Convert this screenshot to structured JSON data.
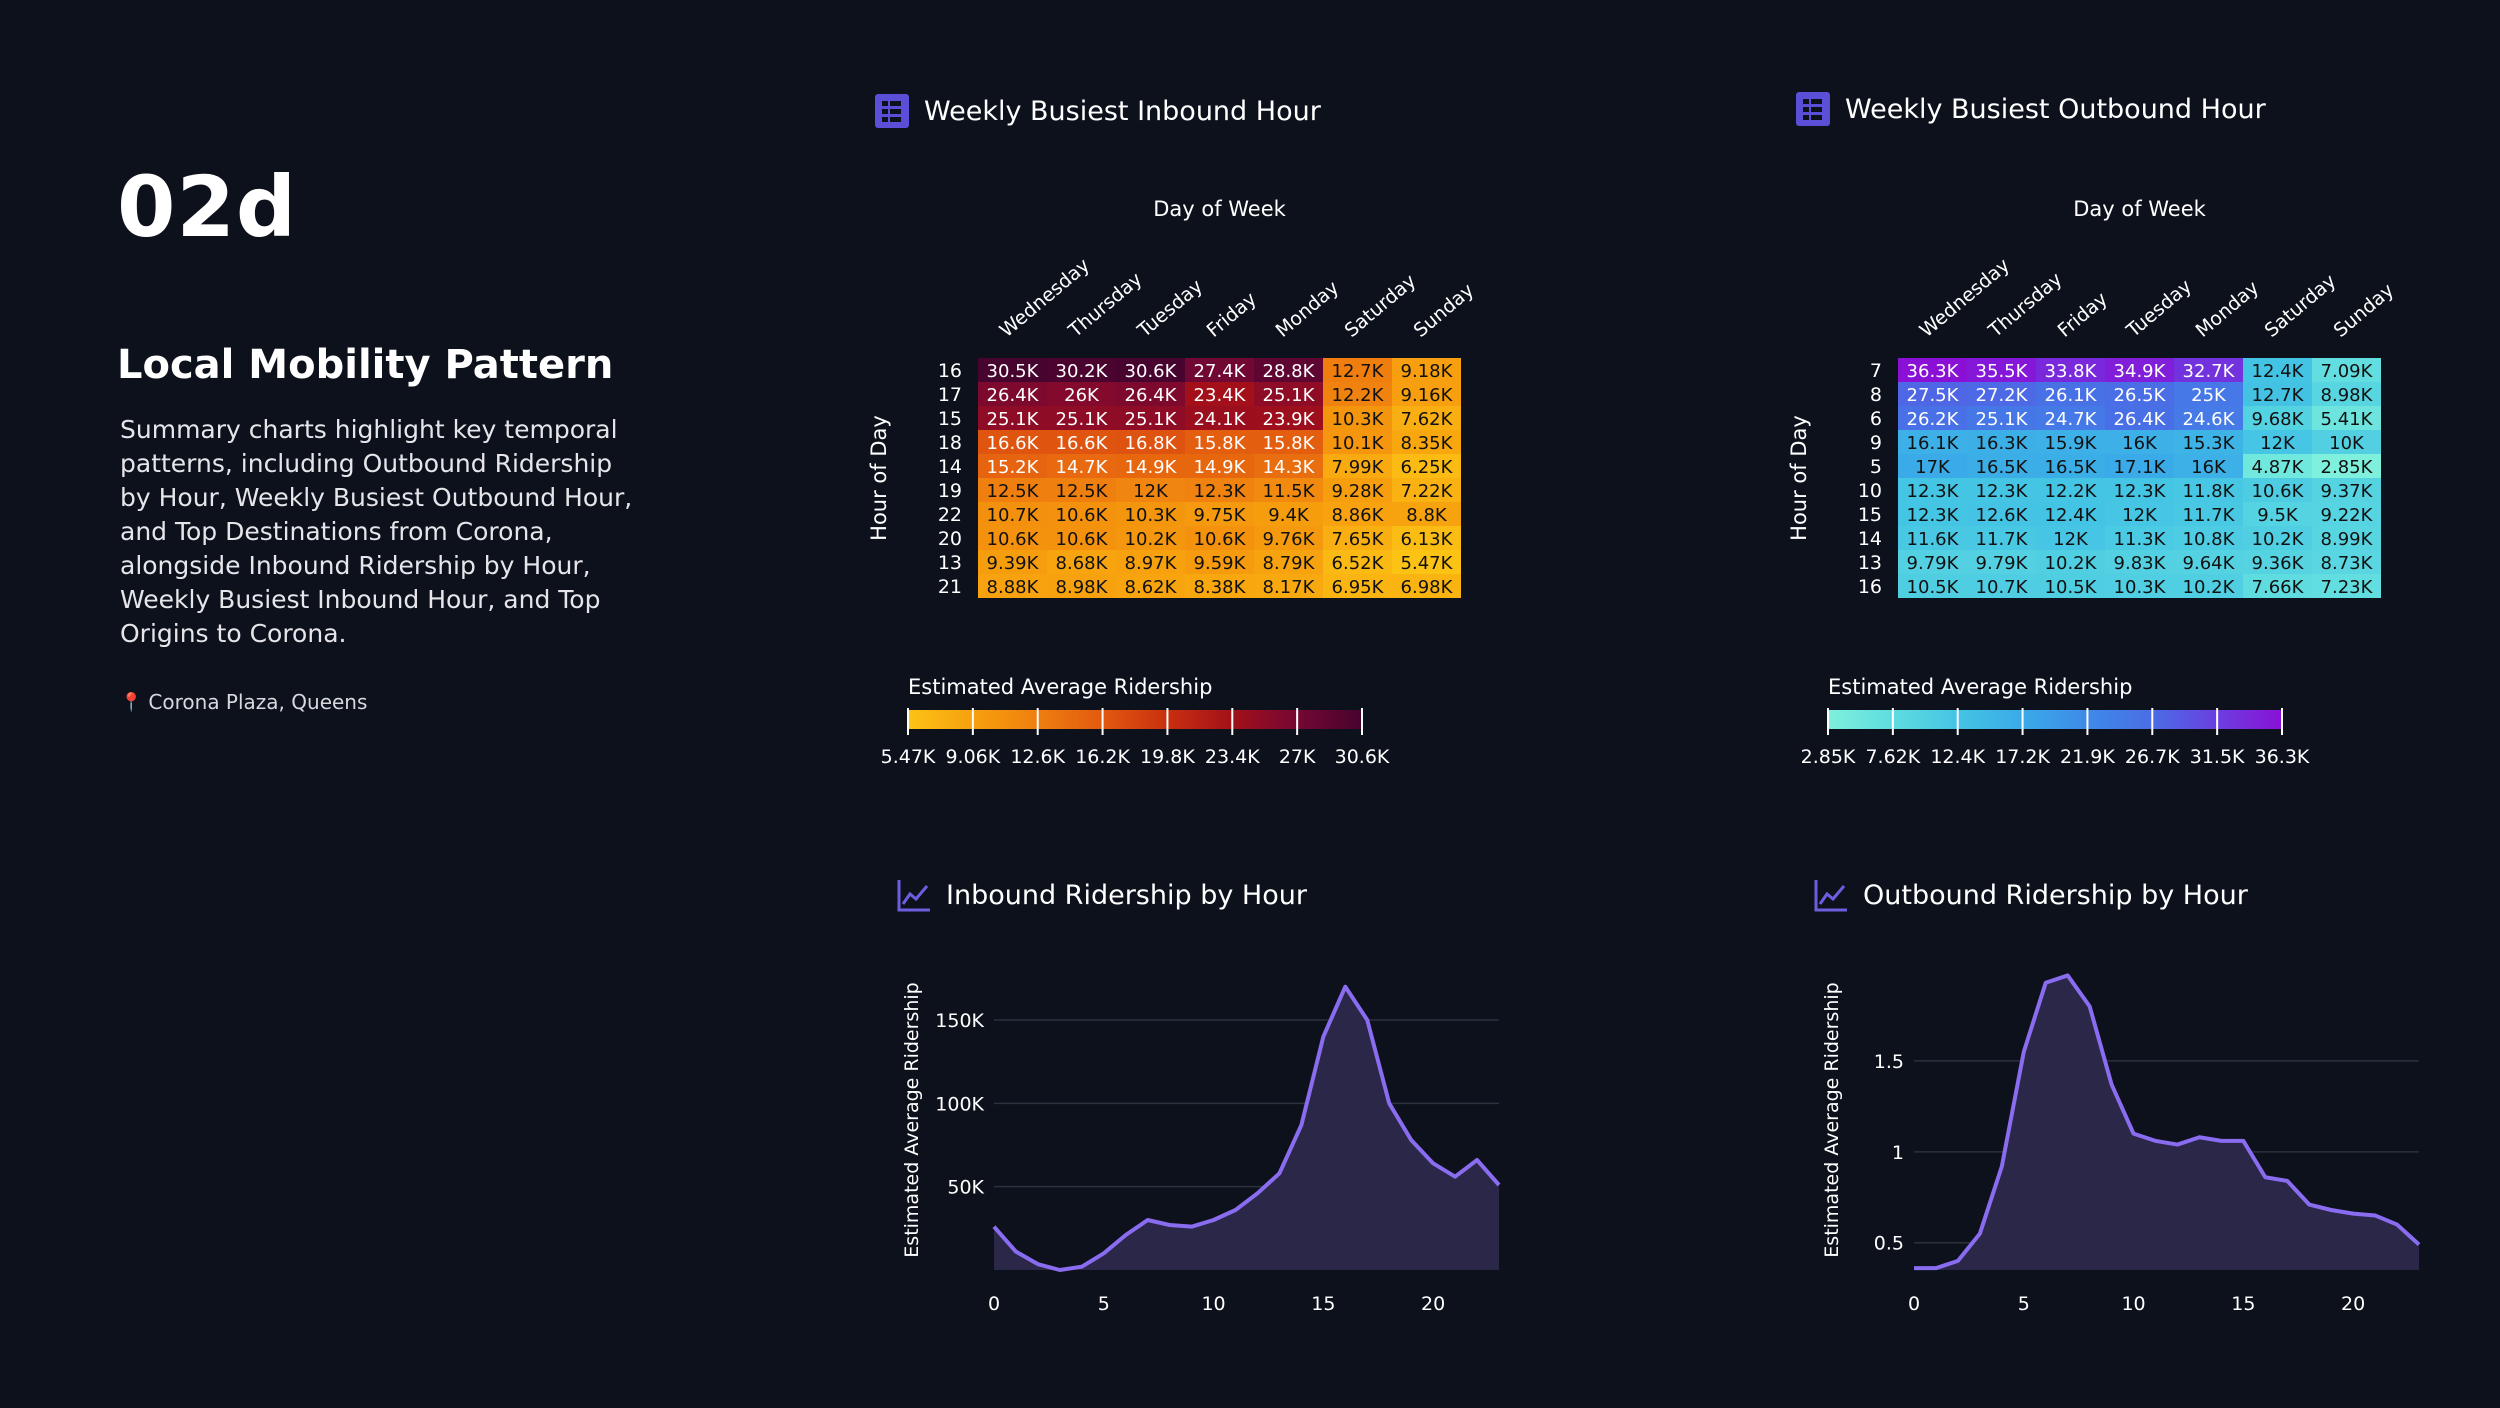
{
  "slide": {
    "code": "02d",
    "title": "Local Mobility Pattern",
    "description": "Summary charts highlight key temporal patterns, including Outbound Ridership by Hour, Weekly Busiest Outbound Hour, and Top Destinations from Corona, alongside Inbound Ridership by Hour, Weekly Busiest Inbound Hour, and Top Origins to Corona.",
    "location": "Corona Plaza, Queens",
    "location_icon": "map-pin-icon"
  },
  "panels": {
    "inbound_heatmap_title": "Weekly Busiest Inbound Hour",
    "outbound_heatmap_title": "Weekly Busiest Outbound Hour",
    "inbound_line_title": "Inbound Ridership by Hour",
    "outbound_line_title": "Outbound Ridership by Hour",
    "heatmap_icon": "grid-table-icon",
    "line_icon": "line-chart-icon",
    "accent_color": "#6b5fe0"
  },
  "chart_data": [
    {
      "id": "inbound-heatmap",
      "type": "heatmap",
      "xlabel": "Day of Week",
      "ylabel": "Hour of Day",
      "x": [
        "Wednesday",
        "Thursday",
        "Tuesday",
        "Friday",
        "Monday",
        "Saturday",
        "Sunday"
      ],
      "y": [
        "16",
        "17",
        "15",
        "18",
        "14",
        "19",
        "22",
        "20",
        "13",
        "21"
      ],
      "values": [
        [
          "30.5K",
          "30.2K",
          "30.6K",
          "27.4K",
          "28.8K",
          "12.7K",
          "9.18K"
        ],
        [
          "26.4K",
          "26K",
          "26.4K",
          "23.4K",
          "25.1K",
          "12.2K",
          "9.16K"
        ],
        [
          "25.1K",
          "25.1K",
          "25.1K",
          "24.1K",
          "23.9K",
          "10.3K",
          "7.62K"
        ],
        [
          "16.6K",
          "16.6K",
          "16.8K",
          "15.8K",
          "15.8K",
          "10.1K",
          "8.35K"
        ],
        [
          "15.2K",
          "14.7K",
          "14.9K",
          "14.9K",
          "14.3K",
          "7.99K",
          "6.25K"
        ],
        [
          "12.5K",
          "12.5K",
          "12K",
          "12.3K",
          "11.5K",
          "9.28K",
          "7.22K"
        ],
        [
          "10.7K",
          "10.6K",
          "10.3K",
          "9.75K",
          "9.4K",
          "8.86K",
          "8.8K"
        ],
        [
          "10.6K",
          "10.6K",
          "10.2K",
          "10.6K",
          "9.76K",
          "7.65K",
          "6.13K"
        ],
        [
          "9.39K",
          "8.68K",
          "8.97K",
          "9.59K",
          "8.79K",
          "6.52K",
          "5.47K"
        ],
        [
          "8.88K",
          "8.98K",
          "8.62K",
          "8.38K",
          "8.17K",
          "6.95K",
          "6.98K"
        ]
      ],
      "legend_title": "Estimated Average Ridership",
      "legend_ticks": [
        "5.47K",
        "9.06K",
        "12.6K",
        "16.2K",
        "19.8K",
        "23.4K",
        "27K",
        "30.6K"
      ],
      "range": [
        5.47,
        30.6
      ],
      "colors": [
        "#fcc315",
        "#f7a00e",
        "#ef7f0f",
        "#e2590f",
        "#c8300f",
        "#a31019",
        "#760733",
        "#46042f"
      ]
    },
    {
      "id": "outbound-heatmap",
      "type": "heatmap",
      "xlabel": "Day of Week",
      "ylabel": "Hour of Day",
      "x": [
        "Wednesday",
        "Thursday",
        "Friday",
        "Tuesday",
        "Monday",
        "Saturday",
        "Sunday"
      ],
      "y": [
        "7",
        "8",
        "6",
        "9",
        "5",
        "10",
        "15",
        "14",
        "13",
        "16"
      ],
      "values": [
        [
          "36.3K",
          "35.5K",
          "33.8K",
          "34.9K",
          "32.7K",
          "12.4K",
          "7.09K"
        ],
        [
          "27.5K",
          "27.2K",
          "26.1K",
          "26.5K",
          "25K",
          "12.7K",
          "8.98K"
        ],
        [
          "26.2K",
          "25.1K",
          "24.7K",
          "26.4K",
          "24.6K",
          "9.68K",
          "5.41K"
        ],
        [
          "16.1K",
          "16.3K",
          "15.9K",
          "16K",
          "15.3K",
          "12K",
          "10K"
        ],
        [
          "17K",
          "16.5K",
          "16.5K",
          "17.1K",
          "16K",
          "4.87K",
          "2.85K"
        ],
        [
          "12.3K",
          "12.3K",
          "12.2K",
          "12.3K",
          "11.8K",
          "10.6K",
          "9.37K"
        ],
        [
          "12.3K",
          "12.6K",
          "12.4K",
          "12K",
          "11.7K",
          "9.5K",
          "9.22K"
        ],
        [
          "11.6K",
          "11.7K",
          "12K",
          "11.3K",
          "10.8K",
          "10.2K",
          "8.99K"
        ],
        [
          "9.79K",
          "9.79K",
          "10.2K",
          "9.83K",
          "9.64K",
          "9.36K",
          "8.73K"
        ],
        [
          "10.5K",
          "10.7K",
          "10.5K",
          "10.3K",
          "10.2K",
          "7.66K",
          "7.23K"
        ]
      ],
      "legend_title": "Estimated Average Ridership",
      "legend_ticks": [
        "2.85K",
        "7.62K",
        "12.4K",
        "17.2K",
        "21.9K",
        "26.7K",
        "31.5K",
        "36.3K"
      ],
      "range": [
        2.85,
        36.3
      ],
      "colors": [
        "#7ef0dc",
        "#5fdce0",
        "#44c4e4",
        "#3aaae8",
        "#3e8ae8",
        "#4a6de6",
        "#6a3fe0",
        "#8a10d6"
      ]
    },
    {
      "id": "inbound-line",
      "type": "area",
      "xlabel": "",
      "ylabel": "Estimated Average Ridership",
      "x": [
        0,
        1,
        2,
        3,
        4,
        5,
        6,
        7,
        8,
        9,
        10,
        11,
        12,
        13,
        14,
        15,
        16,
        17,
        18,
        19,
        20,
        21,
        22,
        23
      ],
      "y": [
        26000,
        11000,
        3500,
        0,
        2000,
        10000,
        21000,
        30000,
        27000,
        26000,
        30000,
        36000,
        46000,
        58000,
        87000,
        140000,
        170000,
        150000,
        100000,
        78000,
        64000,
        56000,
        66000,
        51000
      ],
      "xticks": [
        "0",
        "5",
        "10",
        "15",
        "20"
      ],
      "yticks": [
        "50K",
        "100K",
        "150K"
      ],
      "xlim": [
        0,
        23
      ],
      "ylim": [
        0,
        180000
      ],
      "line_color": "#8a6cf0",
      "fill_color": "#2a2748"
    },
    {
      "id": "outbound-line",
      "type": "area",
      "xlabel": "",
      "ylabel": "Estimated Average Ridership",
      "x": [
        0,
        1,
        2,
        3,
        4,
        5,
        6,
        7,
        8,
        9,
        10,
        11,
        12,
        13,
        14,
        15,
        16,
        17,
        18,
        19,
        20,
        21,
        22,
        23
      ],
      "y": [
        0.36,
        0.36,
        0.4,
        0.55,
        0.92,
        1.55,
        1.93,
        1.97,
        1.8,
        1.37,
        1.1,
        1.06,
        1.04,
        1.08,
        1.06,
        1.06,
        0.86,
        0.84,
        0.71,
        0.68,
        0.66,
        0.65,
        0.6,
        0.49
      ],
      "xticks": [
        "0",
        "5",
        "10",
        "15",
        "20"
      ],
      "yticks": [
        "0.5",
        "1",
        "1.5"
      ],
      "xlim": [
        0,
        23
      ],
      "ylim": [
        0.35,
        2.0
      ],
      "line_color": "#8a6cf0",
      "fill_color": "#2a2748"
    }
  ]
}
